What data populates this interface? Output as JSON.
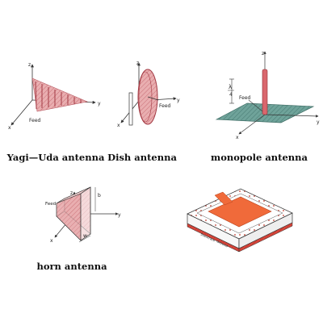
{
  "colors": {
    "background": "#ffffff",
    "line": "#333333",
    "pink_fill": "#e9aeb0",
    "pink_dark": "#c97077",
    "red_fill": "#d8453a",
    "orange_fill": "#f06a3a",
    "teal_fill": "#6fa39a",
    "teal_dark": "#4c7f77",
    "gray_fill": "#e6e6e6",
    "dot_red": "#c0392b"
  },
  "figures": {
    "yagi": {
      "caption": "Yagi—Uda antenna",
      "labels": {
        "z": "z",
        "y": "y",
        "x": "x",
        "feed": "Feed"
      }
    },
    "dish": {
      "caption": "Dish antenna",
      "labels": {
        "z": "z",
        "y": "y",
        "x": "x",
        "feed": "Feed"
      }
    },
    "monopole": {
      "caption": "monopole antenna",
      "labels": {
        "z": "z",
        "y": "y",
        "x": "x",
        "feed": "Feed",
        "lambda": "λ",
        "four": "4"
      }
    },
    "horn": {
      "caption": "horn antenna",
      "labels": {
        "feed": "Feed",
        "z": "z",
        "y": "y",
        "x": "x",
        "b": "b",
        "w": "w"
      }
    },
    "patch": {
      "caption": "",
      "labels": {
        "substrate": "Substrate",
        "ground": "Ground"
      }
    }
  }
}
